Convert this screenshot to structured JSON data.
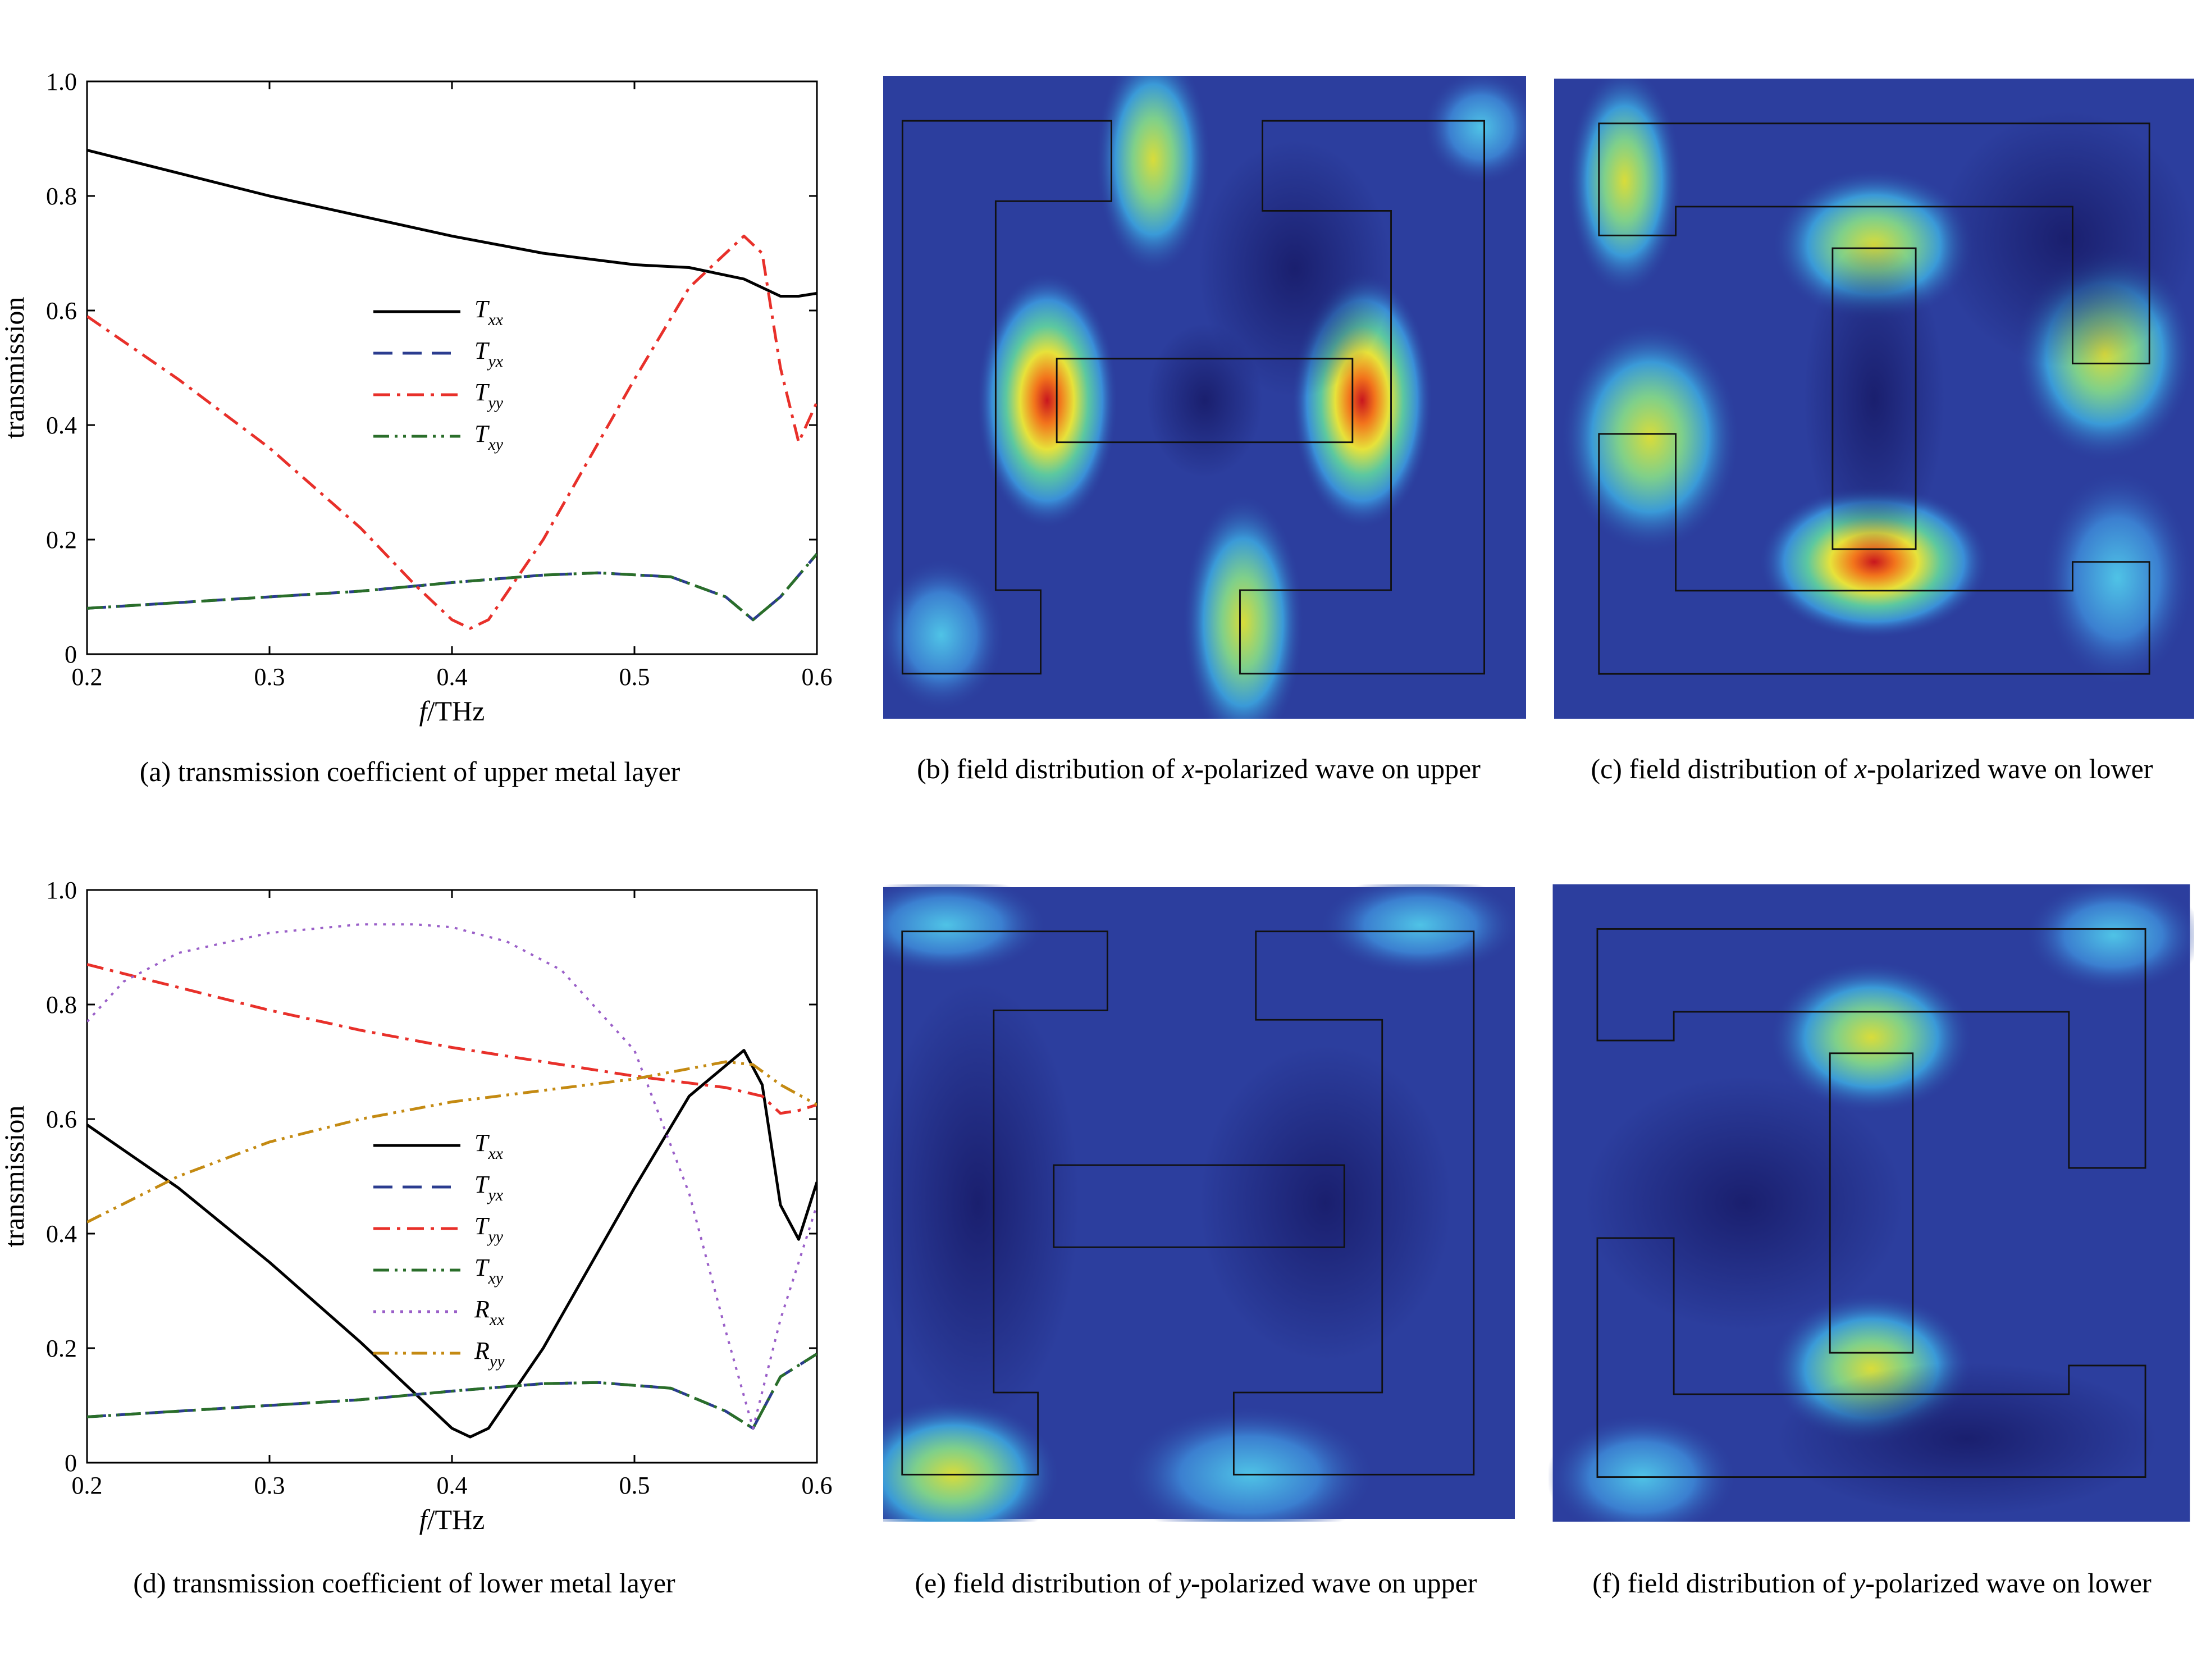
{
  "captions": {
    "a": "(a) transmission coefficient of upper metal layer",
    "b_prefix": "(b) field distribution of ",
    "b_var": "x",
    "b_suffix": "-polarized wave on upper",
    "c_prefix": "(c) field distribution of ",
    "c_var": "x",
    "c_suffix": "-polarized wave on lower",
    "d": "(d) transmission coefficient of lower metal layer",
    "e_prefix": "(e) field distribution of ",
    "e_var": "y",
    "e_suffix": "-polarized wave on upper",
    "f_prefix": "(f) field distribution of ",
    "f_var": "y",
    "f_suffix": "-polarized wave on lower"
  },
  "colors": {
    "Txx": "#000000",
    "Tyx": "#2b3c8f",
    "Tyy": "#e8302a",
    "Txy": "#2a6e2a",
    "Rxx": "#9a5fc8",
    "Ryy": "#c48a12",
    "field_bg": "#2c3e9e"
  },
  "chart_data": [
    {
      "id": "a",
      "type": "line",
      "xlabel_italic": "f",
      "xlabel_rest": "/THz",
      "ylabel": "transmission",
      "xlim": [
        0.2,
        0.6
      ],
      "ylim": [
        0,
        1.0
      ],
      "xticks": [
        "0.2",
        "0.3",
        "0.4",
        "0.5",
        "0.6"
      ],
      "yticks": [
        "0",
        "0.2",
        "0.4",
        "0.6",
        "0.8",
        "1.0"
      ],
      "legend_position": "center-left",
      "series": [
        {
          "key": "Txx",
          "sym": "T",
          "sub": "xx",
          "dash": "solid",
          "x": [
            0.2,
            0.25,
            0.3,
            0.35,
            0.4,
            0.45,
            0.5,
            0.53,
            0.56,
            0.58,
            0.59,
            0.6
          ],
          "y": [
            0.88,
            0.84,
            0.8,
            0.765,
            0.73,
            0.7,
            0.68,
            0.675,
            0.655,
            0.625,
            0.625,
            0.63
          ]
        },
        {
          "key": "Tyx",
          "sym": "T",
          "sub": "yx",
          "dash": "dash",
          "x": [
            0.2,
            0.25,
            0.3,
            0.35,
            0.4,
            0.45,
            0.48,
            0.52,
            0.55,
            0.565,
            0.58,
            0.6
          ],
          "y": [
            0.08,
            0.09,
            0.1,
            0.11,
            0.125,
            0.138,
            0.142,
            0.135,
            0.1,
            0.06,
            0.1,
            0.175
          ]
        },
        {
          "key": "Tyy",
          "sym": "T",
          "sub": "yy",
          "dash": "dashdot",
          "x": [
            0.2,
            0.25,
            0.3,
            0.35,
            0.38,
            0.4,
            0.41,
            0.42,
            0.45,
            0.5,
            0.53,
            0.56,
            0.57,
            0.58,
            0.59,
            0.6
          ],
          "y": [
            0.59,
            0.48,
            0.36,
            0.22,
            0.12,
            0.06,
            0.045,
            0.06,
            0.2,
            0.48,
            0.64,
            0.73,
            0.7,
            0.5,
            0.37,
            0.44
          ]
        },
        {
          "key": "Txy",
          "sym": "T",
          "sub": "xy",
          "dash": "dashdotdot",
          "x": [
            0.2,
            0.25,
            0.3,
            0.35,
            0.4,
            0.45,
            0.48,
            0.52,
            0.55,
            0.565,
            0.58,
            0.6
          ],
          "y": [
            0.08,
            0.09,
            0.1,
            0.11,
            0.125,
            0.138,
            0.142,
            0.135,
            0.1,
            0.06,
            0.1,
            0.175
          ]
        }
      ]
    },
    {
      "id": "d",
      "type": "line",
      "xlabel_italic": "f",
      "xlabel_rest": "/THz",
      "ylabel": "transmission",
      "xlim": [
        0.2,
        0.6
      ],
      "ylim": [
        0,
        1.0
      ],
      "xticks": [
        "0.2",
        "0.3",
        "0.4",
        "0.5",
        "0.6"
      ],
      "yticks": [
        "0",
        "0.2",
        "0.4",
        "0.6",
        "0.8",
        "1.0"
      ],
      "legend_position": "center-left",
      "series": [
        {
          "key": "Txx",
          "sym": "T",
          "sub": "xx",
          "dash": "solid",
          "x": [
            0.2,
            0.25,
            0.3,
            0.35,
            0.38,
            0.4,
            0.41,
            0.42,
            0.45,
            0.5,
            0.53,
            0.56,
            0.57,
            0.58,
            0.59,
            0.6
          ],
          "y": [
            0.59,
            0.48,
            0.35,
            0.21,
            0.12,
            0.06,
            0.045,
            0.06,
            0.2,
            0.48,
            0.64,
            0.72,
            0.66,
            0.45,
            0.39,
            0.49
          ]
        },
        {
          "key": "Tyx",
          "sym": "T",
          "sub": "yx",
          "dash": "dash",
          "x": [
            0.2,
            0.25,
            0.3,
            0.35,
            0.4,
            0.45,
            0.48,
            0.52,
            0.55,
            0.565,
            0.58,
            0.6
          ],
          "y": [
            0.08,
            0.09,
            0.1,
            0.11,
            0.125,
            0.138,
            0.14,
            0.13,
            0.09,
            0.06,
            0.15,
            0.19
          ]
        },
        {
          "key": "Tyy",
          "sym": "T",
          "sub": "yy",
          "dash": "dashdot",
          "x": [
            0.2,
            0.25,
            0.3,
            0.35,
            0.4,
            0.45,
            0.5,
            0.55,
            0.57,
            0.58,
            0.59,
            0.6
          ],
          "y": [
            0.87,
            0.83,
            0.79,
            0.755,
            0.725,
            0.7,
            0.675,
            0.655,
            0.64,
            0.61,
            0.615,
            0.625
          ]
        },
        {
          "key": "Txy",
          "sym": "T",
          "sub": "xy",
          "dash": "dashdotdot",
          "x": [
            0.2,
            0.25,
            0.3,
            0.35,
            0.4,
            0.45,
            0.48,
            0.52,
            0.55,
            0.565,
            0.58,
            0.6
          ],
          "y": [
            0.08,
            0.09,
            0.1,
            0.11,
            0.125,
            0.138,
            0.14,
            0.13,
            0.09,
            0.06,
            0.15,
            0.19
          ]
        },
        {
          "key": "Rxx",
          "sym": "R",
          "sub": "xx",
          "dash": "dot",
          "x": [
            0.2,
            0.22,
            0.25,
            0.3,
            0.35,
            0.38,
            0.4,
            0.43,
            0.46,
            0.5,
            0.53,
            0.55,
            0.565,
            0.58,
            0.6
          ],
          "y": [
            0.77,
            0.84,
            0.89,
            0.925,
            0.94,
            0.94,
            0.935,
            0.91,
            0.86,
            0.72,
            0.47,
            0.23,
            0.06,
            0.25,
            0.45
          ]
        },
        {
          "key": "Ryy",
          "sym": "R",
          "sub": "yy",
          "dash": "dashdotdot",
          "x": [
            0.2,
            0.25,
            0.3,
            0.35,
            0.4,
            0.45,
            0.5,
            0.55,
            0.565,
            0.58,
            0.6
          ],
          "y": [
            0.42,
            0.5,
            0.56,
            0.6,
            0.63,
            0.65,
            0.67,
            0.7,
            0.695,
            0.66,
            0.625
          ]
        }
      ]
    }
  ]
}
